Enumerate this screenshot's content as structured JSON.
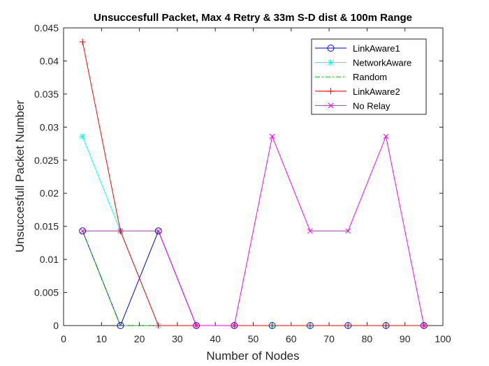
{
  "chart_data": {
    "type": "line",
    "title": "Unsuccesfull Packet, Max 4 Retry & 33m S-D dist & 100m Range",
    "xlabel": "Number of Nodes",
    "ylabel": "Unsuccesfull Packet Number",
    "xlim": [
      0,
      100
    ],
    "ylim": [
      0,
      0.045
    ],
    "x_ticks": [
      0,
      10,
      20,
      30,
      40,
      50,
      60,
      70,
      80,
      90,
      100
    ],
    "y_ticks": [
      0,
      0.005,
      0.01,
      0.015,
      0.02,
      0.025,
      0.03,
      0.035,
      0.04,
      0.045
    ],
    "x_tick_labels": [
      "0",
      "10",
      "20",
      "30",
      "40",
      "50",
      "60",
      "70",
      "80",
      "90",
      "100"
    ],
    "y_tick_labels": [
      "0",
      "0.005",
      "0.01",
      "0.015",
      "0.02",
      "0.025",
      "0.03",
      "0.035",
      "0.04",
      "0.045"
    ],
    "grid": false,
    "legend_position": "top-right",
    "x": [
      5,
      15,
      25,
      35,
      45,
      55,
      65,
      75,
      85,
      95
    ],
    "series": [
      {
        "name": "LinkAware1",
        "color": "#0000ff",
        "line_style": "solid",
        "marker": "circle",
        "values": [
          0.0143,
          0,
          0.0143,
          0,
          0,
          0,
          0,
          0,
          0,
          0
        ]
      },
      {
        "name": "NetworkAware",
        "color": "#00ffff",
        "line_style": "solid",
        "marker": "asterisk",
        "values": [
          0.0286,
          0.0143,
          0,
          0,
          0,
          0,
          0,
          0,
          0,
          0
        ]
      },
      {
        "name": "Random",
        "color": "#00cc00",
        "line_style": "dashdot",
        "marker": "none",
        "values": [
          0.0143,
          0,
          0,
          0,
          0,
          0,
          0,
          0,
          0,
          0
        ]
      },
      {
        "name": "LinkAware2",
        "color": "#ff0000",
        "line_style": "solid",
        "marker": "plus",
        "values": [
          0.0429,
          0.0143,
          0,
          0,
          0,
          0,
          0,
          0,
          0,
          0
        ]
      },
      {
        "name": "No Relay",
        "color": "#ff00ff",
        "line_style": "solid",
        "marker": "cross",
        "values": [
          0.0143,
          0.0143,
          0.0143,
          0,
          0,
          0.0286,
          0.0143,
          0.0143,
          0.0286,
          0
        ]
      }
    ]
  }
}
